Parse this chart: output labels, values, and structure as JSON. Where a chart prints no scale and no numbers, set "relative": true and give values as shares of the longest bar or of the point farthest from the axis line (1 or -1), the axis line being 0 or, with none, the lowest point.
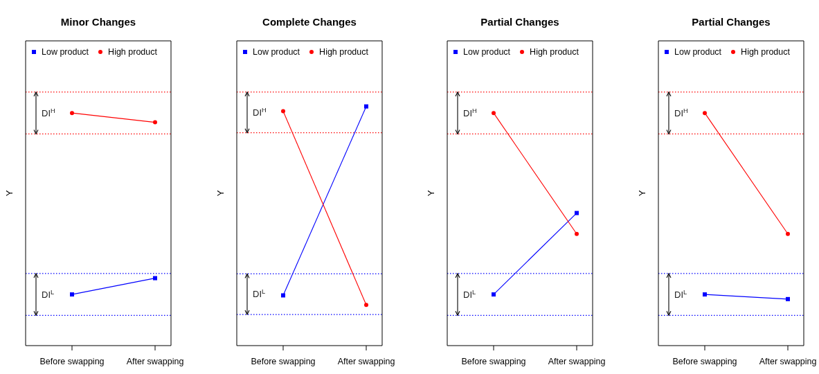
{
  "chart_data": [
    {
      "type": "line",
      "title": "Minor Changes",
      "ylabel": "Y",
      "categories": [
        "Before swapping",
        "After swapping"
      ],
      "relative": true,
      "legend": "top left",
      "series": [
        {
          "name": "Low product",
          "color": "#0000ff",
          "marker": "square",
          "values": [
            0.22,
            0.29
          ]
        },
        {
          "name": "High product",
          "color": "#ff0000",
          "marker": "circle",
          "values": [
            1,
            0.96
          ]
        }
      ],
      "ref_lines": [
        {
          "axis": "y",
          "value": 1.09,
          "color": "#ff0000",
          "line_style": "dotted"
        },
        {
          "axis": "y",
          "value": 0.91,
          "color": "#ff0000",
          "line_style": "dotted"
        },
        {
          "axis": "y",
          "value": 0.31,
          "color": "#0000ff",
          "line_style": "dotted"
        },
        {
          "axis": "y",
          "value": 0.13,
          "color": "#0000ff",
          "line_style": "dotted"
        }
      ],
      "annotations": [
        "DI$^{H}$",
        "DI$^{L}$"
      ]
    },
    {
      "type": "line",
      "title": "Complete Changes",
      "ylabel": "Y",
      "categories": [
        "Before swapping",
        "After swapping"
      ],
      "relative": true,
      "legend": "top left",
      "series": [
        {
          "name": "Low product",
          "color": "#0000ff",
          "marker": "square",
          "values": [
            0.21,
            1
          ]
        },
        {
          "name": "High product",
          "color": "#ff0000",
          "marker": "circle",
          "values": [
            0.98,
            0.17
          ]
        }
      ],
      "ref_lines": [
        {
          "axis": "y",
          "value": 1.06,
          "color": "#ff0000",
          "line_style": "dotted"
        },
        {
          "axis": "y",
          "value": 0.89,
          "color": "#ff0000",
          "line_style": "dotted"
        },
        {
          "axis": "y",
          "value": 0.3,
          "color": "#0000ff",
          "line_style": "dotted"
        },
        {
          "axis": "y",
          "value": 0.13,
          "color": "#0000ff",
          "line_style": "dotted"
        }
      ],
      "annotations": [
        "DI$^{H}$",
        "DI$^{L}$"
      ]
    },
    {
      "type": "line",
      "title": "Partial Changes",
      "ylabel": "Y",
      "categories": [
        "Before swapping",
        "After swapping"
      ],
      "relative": true,
      "legend": "top left",
      "series": [
        {
          "name": "Low product",
          "color": "#0000ff",
          "marker": "square",
          "values": [
            0.22,
            0.57
          ]
        },
        {
          "name": "High product",
          "color": "#ff0000",
          "marker": "circle",
          "values": [
            1,
            0.48
          ]
        }
      ],
      "ref_lines": [
        {
          "axis": "y",
          "value": 1.09,
          "color": "#ff0000",
          "line_style": "dotted"
        },
        {
          "axis": "y",
          "value": 0.91,
          "color": "#ff0000",
          "line_style": "dotted"
        },
        {
          "axis": "y",
          "value": 0.31,
          "color": "#0000ff",
          "line_style": "dotted"
        },
        {
          "axis": "y",
          "value": 0.13,
          "color": "#0000ff",
          "line_style": "dotted"
        }
      ],
      "annotations": [
        "DI$^{H}$",
        "DI$^{L}$"
      ]
    },
    {
      "type": "line",
      "title": "Partial Changes",
      "ylabel": "Y",
      "categories": [
        "Before swapping",
        "After swapping"
      ],
      "relative": true,
      "legend": "top left",
      "series": [
        {
          "name": "Low product",
          "color": "#0000ff",
          "marker": "square",
          "values": [
            0.22,
            0.2
          ]
        },
        {
          "name": "High product",
          "color": "#ff0000",
          "marker": "circle",
          "values": [
            1,
            0.48
          ]
        }
      ],
      "ref_lines": [
        {
          "axis": "y",
          "value": 1.09,
          "color": "#ff0000",
          "line_style": "dotted"
        },
        {
          "axis": "y",
          "value": 0.91,
          "color": "#ff0000",
          "line_style": "dotted"
        },
        {
          "axis": "y",
          "value": 0.31,
          "color": "#0000ff",
          "line_style": "dotted"
        },
        {
          "axis": "y",
          "value": 0.13,
          "color": "#0000ff",
          "line_style": "dotted"
        }
      ],
      "annotations": [
        "DI$^{H}$",
        "DI$^{L}$"
      ]
    }
  ]
}
